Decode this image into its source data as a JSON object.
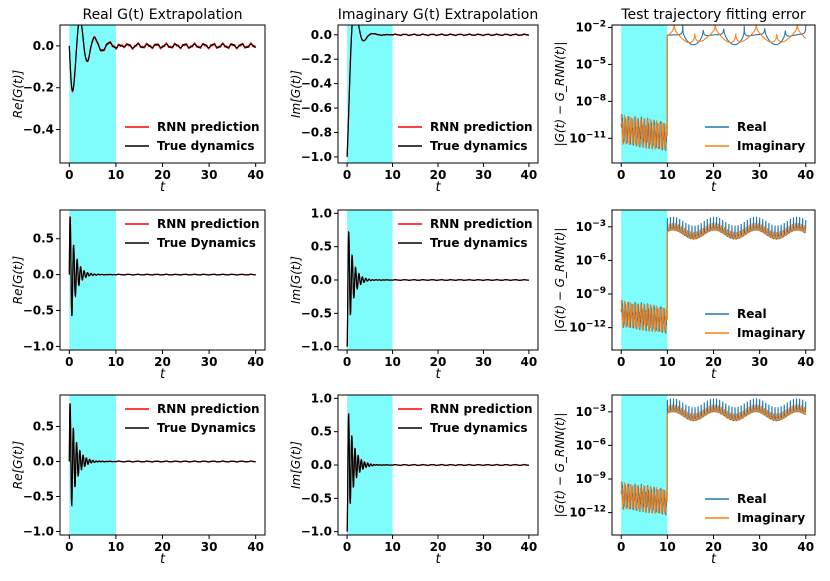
{
  "chart_data": [
    {
      "type": "line",
      "title": "Real G(t) Extrapolation",
      "xlabel": "t",
      "ylabel": "Re[G(t)]",
      "xlim": [
        -2,
        42
      ],
      "ylim": [
        -0.56,
        0.1
      ],
      "xticks": [
        0,
        10,
        20,
        30,
        40
      ],
      "yticks": [
        0.0,
        -0.2,
        -0.4
      ],
      "ytick_labels": [
        "0.0",
        "−0.2",
        "−0.4"
      ],
      "shaded_region": [
        0,
        10
      ],
      "legend_position": "lower-right",
      "dynamics": {
        "amplitude": 0.28,
        "freq": 1.0,
        "decay": 0.35,
        "sign": -1,
        "offset": 0.0,
        "tail": 0.008
      },
      "series": [
        {
          "name": "RNN prediction",
          "color": "#ff0000"
        },
        {
          "name": "True dynamics",
          "color": "#000000"
        }
      ]
    },
    {
      "type": "line",
      "title": "Imaginary G(t) Extrapolation",
      "xlabel": "t",
      "ylabel": "Im[G(t)]",
      "xlim": [
        -2,
        42
      ],
      "ylim": [
        -1.05,
        0.08
      ],
      "xticks": [
        0,
        10,
        20,
        30,
        40
      ],
      "yticks": [
        0.0,
        -0.2,
        -0.4,
        -0.6,
        -0.8,
        -1.0
      ],
      "ytick_labels": [
        "0.0",
        "−0.2",
        "−0.4",
        "−0.6",
        "−0.8",
        "−1.0"
      ],
      "shaded_region": [
        0,
        10
      ],
      "legend_position": "lower-right",
      "dynamics": {
        "amplitude": 1.0,
        "freq": 0.8,
        "decay": 0.8,
        "sign": -1,
        "offset": 0.0,
        "tail": 0.004,
        "cosine": true
      },
      "series": [
        {
          "name": "RNN prediction",
          "color": "#ff0000"
        },
        {
          "name": "True dynamics",
          "color": "#000000"
        }
      ]
    },
    {
      "type": "line",
      "title": "Test trajectory fitting error",
      "xlabel": "t",
      "ylabel": "|G(t) − G_RNN(t)|",
      "xlim": [
        -2,
        42
      ],
      "log_y": true,
      "ylim_log10": [
        -13,
        -1.8
      ],
      "xticks": [
        0,
        10,
        20,
        30,
        40
      ],
      "yticks_log10": [
        -2,
        -5,
        -8,
        -11
      ],
      "shaded_region": [
        0,
        10
      ],
      "legend_position": "lower-right",
      "error": {
        "pre_level": -9.8,
        "post_level": -2.6,
        "dip_count": 9
      },
      "series": [
        {
          "name": "Real",
          "color": "#1f77b4"
        },
        {
          "name": "Imaginary",
          "color": "#ff7f0e"
        }
      ]
    },
    {
      "type": "line",
      "title": "",
      "xlabel": "t",
      "ylabel": "Re[G(t)]",
      "xlim": [
        -2,
        42
      ],
      "ylim": [
        -1.05,
        0.9
      ],
      "xticks": [
        0,
        10,
        20,
        30,
        40
      ],
      "yticks": [
        0.5,
        0.0,
        -0.5,
        -1.0
      ],
      "ytick_labels": [
        "0.5",
        "0.0",
        "−0.5",
        "−1.0"
      ],
      "shaded_region": [
        0,
        10
      ],
      "legend_position": "upper-right",
      "dynamics": {
        "amplitude": 0.95,
        "freq": 4.2,
        "decay": 0.9,
        "sign": 1,
        "offset": 0.0,
        "tail": 0.004
      },
      "series": [
        {
          "name": "RNN prediction",
          "color": "#ff0000"
        },
        {
          "name": "True Dynamics",
          "color": "#000000"
        }
      ]
    },
    {
      "type": "line",
      "title": "",
      "xlabel": "t",
      "ylabel": "Im[G(t)]",
      "xlim": [
        -2,
        42
      ],
      "ylim": [
        -1.05,
        1.05
      ],
      "xticks": [
        0,
        10,
        20,
        30,
        40
      ],
      "yticks": [
        1.0,
        0.5,
        0.0,
        -0.5,
        -1.0
      ],
      "ytick_labels": [
        "1.0",
        "0.5",
        "0.0",
        "−0.5",
        "−1.0"
      ],
      "shaded_region": [
        0,
        10
      ],
      "legend_position": "upper-right",
      "dynamics": {
        "amplitude": 1.0,
        "freq": 4.2,
        "decay": 0.9,
        "sign": -1,
        "offset": 0.0,
        "tail": 0.004,
        "cosine": true
      },
      "series": [
        {
          "name": "RNN prediction",
          "color": "#ff0000"
        },
        {
          "name": "True dynamics",
          "color": "#000000"
        }
      ]
    },
    {
      "type": "line",
      "title": "",
      "xlabel": "t",
      "ylabel": "|G(t) − G_RNN(t)|",
      "xlim": [
        -2,
        42
      ],
      "log_y": true,
      "ylim_log10": [
        -14,
        -1.5
      ],
      "xticks": [
        0,
        10,
        20,
        30,
        40
      ],
      "yticks_log10": [
        -3,
        -6,
        -9,
        -12
      ],
      "shaded_region": [
        0,
        10
      ],
      "legend_position": "lower-right",
      "error": {
        "pre_level": -10.3,
        "post_level": -3.3,
        "dip_count": 60
      },
      "series": [
        {
          "name": "Real",
          "color": "#1f77b4"
        },
        {
          "name": "Imaginary",
          "color": "#ff7f0e"
        }
      ]
    },
    {
      "type": "line",
      "title": "",
      "xlabel": "t",
      "ylabel": "Re[G(t)]",
      "xlim": [
        -2,
        42
      ],
      "ylim": [
        -1.05,
        0.95
      ],
      "xticks": [
        0,
        10,
        20,
        30,
        40
      ],
      "yticks": [
        0.5,
        0.0,
        -0.5,
        -1.0
      ],
      "ytick_labels": [
        "0.5",
        "0.0",
        "−0.5",
        "−1.0"
      ],
      "shaded_region": [
        0,
        10
      ],
      "legend_position": "upper-right",
      "dynamics": {
        "amplitude": 0.95,
        "freq": 4.5,
        "decay": 0.8,
        "sign": 1,
        "offset": 0.0,
        "tail": 0.005
      },
      "series": [
        {
          "name": "RNN prediction",
          "color": "#ff0000"
        },
        {
          "name": "True Dynamics",
          "color": "#000000"
        }
      ]
    },
    {
      "type": "line",
      "title": "",
      "xlabel": "t",
      "ylabel": "Im[G(t)]",
      "xlim": [
        -2,
        42
      ],
      "ylim": [
        -1.05,
        1.05
      ],
      "xticks": [
        0,
        10,
        20,
        30,
        40
      ],
      "yticks": [
        1.0,
        0.5,
        0.0,
        -0.5,
        -1.0
      ],
      "ytick_labels": [
        "1.0",
        "0.5",
        "0.0",
        "−0.5",
        "−1.0"
      ],
      "shaded_region": [
        0,
        10
      ],
      "legend_position": "upper-right",
      "dynamics": {
        "amplitude": 1.0,
        "freq": 4.5,
        "decay": 0.8,
        "sign": -1,
        "offset": 0.0,
        "tail": 0.005,
        "cosine": true
      },
      "series": [
        {
          "name": "RNN prediction",
          "color": "#ff0000"
        },
        {
          "name": "True dynamics",
          "color": "#000000"
        }
      ]
    },
    {
      "type": "line",
      "title": "",
      "xlabel": "t",
      "ylabel": "|G(t) − G_RNN(t)|",
      "xlim": [
        -2,
        42
      ],
      "log_y": true,
      "ylim_log10": [
        -14,
        -1.5
      ],
      "xticks": [
        0,
        10,
        20,
        30,
        40
      ],
      "yticks_log10": [
        -3,
        -6,
        -9,
        -12
      ],
      "shaded_region": [
        0,
        10
      ],
      "legend_position": "lower-right",
      "error": {
        "pre_level": -10.0,
        "post_level": -3.0,
        "dip_count": 60
      },
      "series": [
        {
          "name": "Real",
          "color": "#1f77b4"
        },
        {
          "name": "Imaginary",
          "color": "#ff7f0e"
        }
      ]
    }
  ]
}
